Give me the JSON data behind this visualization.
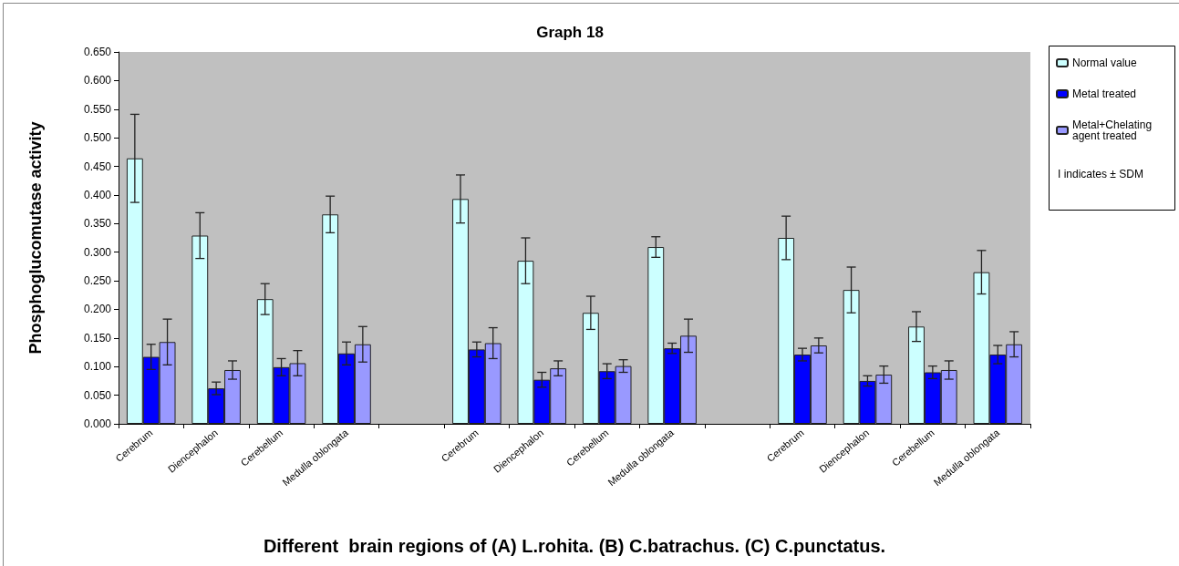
{
  "chart_data": {
    "type": "bar",
    "title": "Graph 18",
    "ylabel": "Phosphoglucomutase activity",
    "xlabel": "Different  brain regions of (A) L.rohita. (B) C.batrachus. (C) C.punctatus.",
    "categories": [
      "Cerebrum",
      "Diencephalon",
      "Cerebellum",
      "Medulla oblongata",
      null,
      "Cerebrum",
      "Diencephalon",
      "Cerebellum",
      "Medulla oblongata",
      null,
      "Cerebrum",
      "Diencephalon",
      "Cerebellum",
      "Medulla oblongata"
    ],
    "series": [
      {
        "name": "Normal value",
        "color": "#ccffff",
        "values": [
          0.464,
          0.329,
          0.218,
          0.366,
          null,
          0.393,
          0.285,
          0.194,
          0.309,
          null,
          0.325,
          0.234,
          0.17,
          0.265
        ],
        "errors": [
          0.077,
          0.04,
          0.027,
          0.032,
          null,
          0.042,
          0.04,
          0.029,
          0.018,
          null,
          0.038,
          0.04,
          0.026,
          0.038
        ]
      },
      {
        "name": "Metal treated",
        "color": "#0000ff",
        "values": [
          0.117,
          0.062,
          0.099,
          0.123,
          null,
          0.13,
          0.077,
          0.092,
          0.132,
          null,
          0.121,
          0.075,
          0.09,
          0.121
        ],
        "errors": [
          0.022,
          0.011,
          0.015,
          0.02,
          null,
          0.013,
          0.013,
          0.013,
          0.009,
          null,
          0.011,
          0.009,
          0.011,
          0.016
        ]
      },
      {
        "name": "Metal+Chelating agent treated",
        "color": "#9999ff",
        "values": [
          0.143,
          0.094,
          0.106,
          0.139,
          null,
          0.141,
          0.097,
          0.101,
          0.154,
          null,
          0.137,
          0.086,
          0.094,
          0.139
        ],
        "errors": [
          0.04,
          0.016,
          0.022,
          0.031,
          null,
          0.027,
          0.013,
          0.011,
          0.029,
          null,
          0.013,
          0.015,
          0.016,
          0.022
        ]
      }
    ],
    "ylim": [
      0,
      0.65
    ],
    "yticks": [
      {
        "value": 0,
        "label": "0.000"
      },
      {
        "value": 0.05,
        "label": "0.050"
      },
      {
        "value": 0.1,
        "label": "0.100"
      },
      {
        "value": 0.15,
        "label": "0.150"
      },
      {
        "value": 0.2,
        "label": "0.200"
      },
      {
        "value": 0.25,
        "label": "0.250"
      },
      {
        "value": 0.3,
        "label": "0.300"
      },
      {
        "value": 0.35,
        "label": "0.350"
      },
      {
        "value": 0.4,
        "label": "0.400"
      },
      {
        "value": 0.45,
        "label": "0.450"
      },
      {
        "value": 0.5,
        "label": "0.500"
      },
      {
        "value": 0.55,
        "label": "0.550"
      },
      {
        "value": 0.6,
        "label": "0.600"
      },
      {
        "value": 0.65,
        "label": "0.650"
      }
    ],
    "annotations": [
      "I indicates ± SDM"
    ],
    "legend": "right",
    "grid": false
  }
}
